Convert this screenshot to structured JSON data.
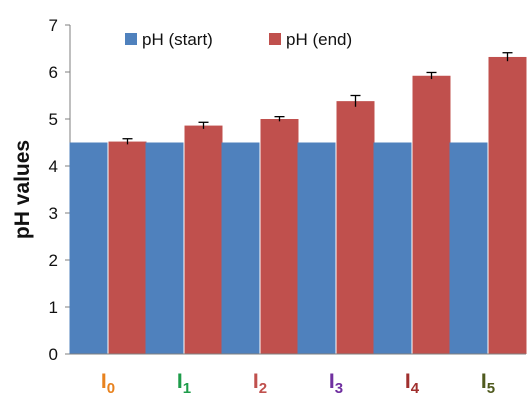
{
  "chart_data": {
    "type": "bar",
    "ylabel": "pH values",
    "ylim": [
      0,
      7
    ],
    "yticks": [
      0,
      1,
      2,
      3,
      4,
      5,
      6,
      7
    ],
    "grid": false,
    "legend_position": "top-left",
    "categories": [
      {
        "base": "I",
        "sub": "0",
        "color": "#E8821E"
      },
      {
        "base": "I",
        "sub": "1",
        "color": "#1E9C4A"
      },
      {
        "base": "I",
        "sub": "2",
        "color": "#C0504D"
      },
      {
        "base": "I",
        "sub": "3",
        "color": "#7030A0"
      },
      {
        "base": "I",
        "sub": "4",
        "color": "#A0302E"
      },
      {
        "base": "I",
        "sub": "5",
        "color": "#4F5A1E"
      }
    ],
    "series": [
      {
        "name": "pH (start)",
        "color": "#4F81BD",
        "values": [
          4.5,
          4.5,
          4.5,
          4.5,
          4.5,
          4.5
        ],
        "errors": [
          0,
          0,
          0,
          0,
          0,
          0
        ]
      },
      {
        "name": "pH (end)",
        "color": "#C0504D",
        "values": [
          4.52,
          4.86,
          5.0,
          5.38,
          5.92,
          6.32
        ],
        "errors": [
          0.06,
          0.07,
          0.05,
          0.12,
          0.07,
          0.09
        ]
      }
    ]
  }
}
